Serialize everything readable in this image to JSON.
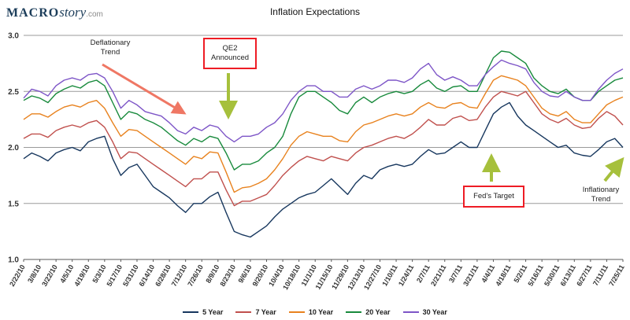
{
  "logo": {
    "macro": "MACRO",
    "story": "story",
    "com": ".com"
  },
  "chart_data": {
    "type": "line",
    "title": "Inflation Expectations",
    "xlabel": "",
    "ylabel": "",
    "ylim": [
      1.0,
      3.0
    ],
    "yticks": [
      1.0,
      1.5,
      2.0,
      2.5,
      3.0
    ],
    "grid": "horizontal",
    "legend_position": "bottom",
    "tick_rotation": -60,
    "tick_step": 2,
    "points_per_series": 75,
    "categories": [
      "2/22/10",
      "3/8/10",
      "3/22/10",
      "4/5/10",
      "4/19/10",
      "5/3/10",
      "5/17/10",
      "5/31/10",
      "6/14/10",
      "6/28/10",
      "7/12/10",
      "7/26/10",
      "8/9/10",
      "8/23/10",
      "9/6/10",
      "9/20/10",
      "10/4/10",
      "10/18/10",
      "11/1/10",
      "11/15/10",
      "11/29/10",
      "12/13/10",
      "12/27/10",
      "1/10/11",
      "1/24/11",
      "2/7/11",
      "2/21/11",
      "3/7/11",
      "3/21/11",
      "4/4/11",
      "4/18/11",
      "5/2/11",
      "5/16/11",
      "5/30/11",
      "6/13/11",
      "6/27/11",
      "7/11/11",
      "7/25/11"
    ],
    "series": [
      {
        "name": "5 Year",
        "color": "#17375E",
        "values": [
          1.9,
          1.95,
          1.92,
          1.88,
          1.95,
          1.98,
          2.0,
          1.97,
          2.05,
          2.08,
          2.1,
          1.9,
          1.75,
          1.82,
          1.85,
          1.75,
          1.65,
          1.6,
          1.55,
          1.48,
          1.42,
          1.5,
          1.5,
          1.56,
          1.6,
          1.42,
          1.25,
          1.22,
          1.2,
          1.25,
          1.3,
          1.38,
          1.45,
          1.5,
          1.55,
          1.58,
          1.6,
          1.66,
          1.72,
          1.65,
          1.58,
          1.68,
          1.75,
          1.72,
          1.8,
          1.83,
          1.85,
          1.83,
          1.85,
          1.92,
          1.98,
          1.94,
          1.95,
          2.0,
          2.05,
          2.0,
          2.0,
          2.15,
          2.3,
          2.36,
          2.4,
          2.28,
          2.2,
          2.15,
          2.1,
          2.05,
          2.0,
          2.02,
          1.95,
          1.93,
          1.92,
          1.98,
          2.05,
          2.08,
          2.0
        ]
      },
      {
        "name": "7 Year",
        "color": "#C0504D",
        "values": [
          2.08,
          2.12,
          2.12,
          2.09,
          2.15,
          2.18,
          2.2,
          2.18,
          2.22,
          2.24,
          2.18,
          2.05,
          1.9,
          1.96,
          1.95,
          1.9,
          1.85,
          1.8,
          1.75,
          1.7,
          1.65,
          1.72,
          1.72,
          1.78,
          1.78,
          1.62,
          1.48,
          1.52,
          1.52,
          1.55,
          1.58,
          1.66,
          1.75,
          1.82,
          1.88,
          1.92,
          1.9,
          1.88,
          1.92,
          1.9,
          1.88,
          1.95,
          2.0,
          2.02,
          2.05,
          2.08,
          2.1,
          2.08,
          2.12,
          2.18,
          2.25,
          2.2,
          2.2,
          2.26,
          2.28,
          2.24,
          2.25,
          2.36,
          2.45,
          2.5,
          2.48,
          2.46,
          2.5,
          2.4,
          2.3,
          2.25,
          2.22,
          2.26,
          2.2,
          2.17,
          2.18,
          2.26,
          2.32,
          2.28,
          2.2
        ]
      },
      {
        "name": "10 Year",
        "color": "#E8821E",
        "values": [
          2.25,
          2.3,
          2.3,
          2.27,
          2.32,
          2.36,
          2.38,
          2.36,
          2.4,
          2.42,
          2.35,
          2.22,
          2.1,
          2.16,
          2.15,
          2.1,
          2.05,
          2.0,
          1.95,
          1.9,
          1.85,
          1.92,
          1.9,
          1.96,
          1.95,
          1.78,
          1.6,
          1.64,
          1.65,
          1.68,
          1.72,
          1.8,
          1.9,
          2.02,
          2.1,
          2.14,
          2.12,
          2.1,
          2.1,
          2.06,
          2.05,
          2.14,
          2.2,
          2.22,
          2.25,
          2.28,
          2.3,
          2.28,
          2.3,
          2.36,
          2.4,
          2.36,
          2.35,
          2.39,
          2.4,
          2.36,
          2.35,
          2.48,
          2.6,
          2.64,
          2.62,
          2.6,
          2.55,
          2.45,
          2.35,
          2.3,
          2.28,
          2.32,
          2.25,
          2.22,
          2.22,
          2.3,
          2.38,
          2.42,
          2.45
        ]
      },
      {
        "name": "20 Year",
        "color": "#188A3C",
        "values": [
          2.42,
          2.46,
          2.44,
          2.4,
          2.48,
          2.52,
          2.55,
          2.53,
          2.58,
          2.6,
          2.55,
          2.4,
          2.25,
          2.32,
          2.3,
          2.25,
          2.22,
          2.18,
          2.12,
          2.06,
          2.02,
          2.08,
          2.05,
          2.1,
          2.08,
          1.95,
          1.8,
          1.85,
          1.85,
          1.88,
          1.95,
          2.0,
          2.1,
          2.3,
          2.45,
          2.5,
          2.5,
          2.45,
          2.4,
          2.33,
          2.3,
          2.4,
          2.45,
          2.4,
          2.45,
          2.48,
          2.5,
          2.48,
          2.5,
          2.56,
          2.6,
          2.53,
          2.5,
          2.54,
          2.55,
          2.5,
          2.5,
          2.65,
          2.8,
          2.86,
          2.85,
          2.8,
          2.75,
          2.62,
          2.55,
          2.5,
          2.48,
          2.52,
          2.45,
          2.42,
          2.42,
          2.5,
          2.55,
          2.6,
          2.62
        ]
      },
      {
        "name": "30 Year",
        "color": "#7D55C7",
        "values": [
          2.44,
          2.52,
          2.5,
          2.46,
          2.55,
          2.6,
          2.62,
          2.6,
          2.65,
          2.66,
          2.62,
          2.5,
          2.35,
          2.42,
          2.38,
          2.32,
          2.3,
          2.28,
          2.22,
          2.15,
          2.12,
          2.18,
          2.15,
          2.2,
          2.18,
          2.1,
          2.05,
          2.1,
          2.1,
          2.12,
          2.18,
          2.22,
          2.3,
          2.42,
          2.5,
          2.55,
          2.55,
          2.5,
          2.5,
          2.45,
          2.45,
          2.52,
          2.55,
          2.52,
          2.55,
          2.6,
          2.6,
          2.58,
          2.62,
          2.7,
          2.75,
          2.65,
          2.6,
          2.63,
          2.6,
          2.55,
          2.55,
          2.65,
          2.72,
          2.78,
          2.75,
          2.73,
          2.7,
          2.58,
          2.5,
          2.46,
          2.45,
          2.5,
          2.45,
          2.42,
          2.42,
          2.52,
          2.6,
          2.66,
          2.7
        ]
      }
    ]
  },
  "annotations": {
    "deflationary": {
      "text": "Deflationary\nTrend"
    },
    "qe2": {
      "text": "QE2\nAnnounced"
    },
    "feds_target": {
      "text": "Fed's Target"
    },
    "inflationary": {
      "text": "Inflationary\nTrend"
    },
    "box_border_color": "#ee1c25",
    "red_arrow_color": "#ef7764",
    "green_arrow_color": "#a6c03c"
  }
}
